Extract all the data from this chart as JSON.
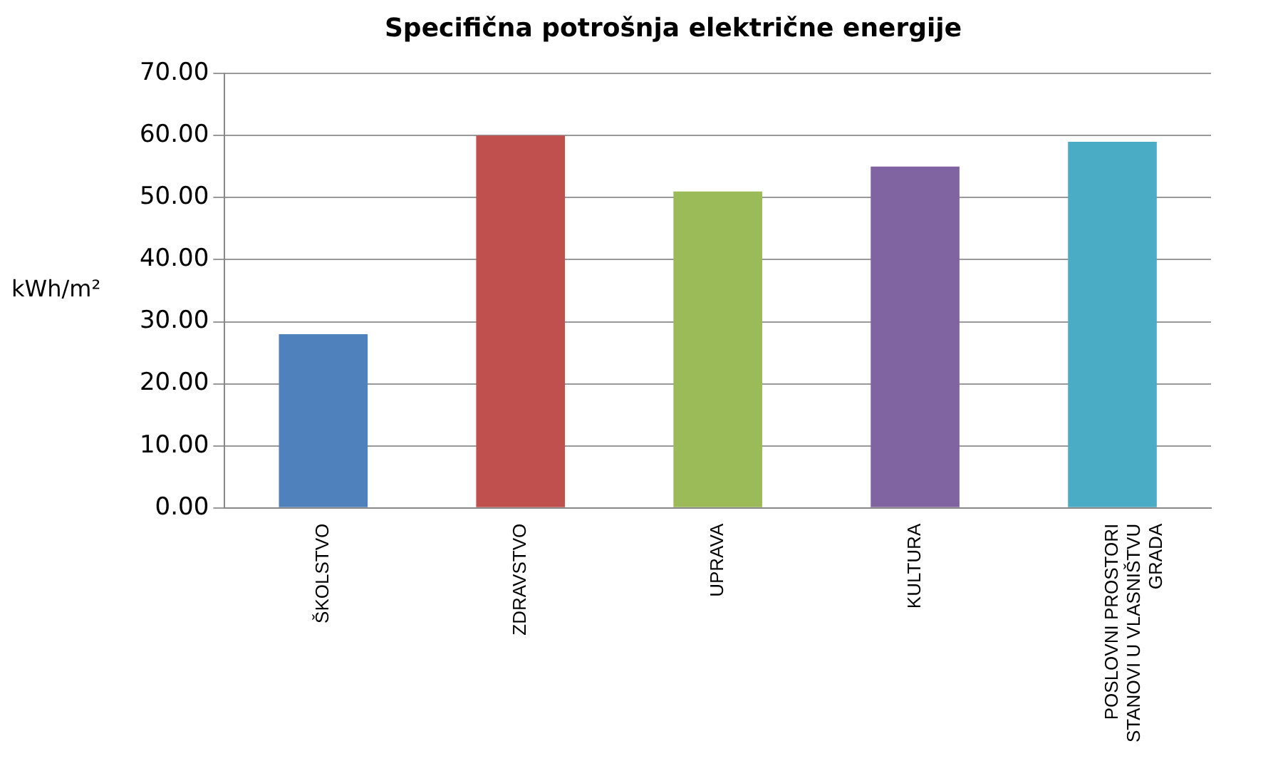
{
  "chart_data": {
    "type": "bar",
    "title": "Specifična potrošnja električne energije",
    "ylabel": "kWh/m²",
    "categories": [
      "ŠKOLSTVO",
      "ZDRAVSTVO",
      "UPRAVA",
      "KULTURA",
      "POSLOVNI PROSTORI STANOVI U VLASNIŠTVU GRADA"
    ],
    "values": [
      28,
      60,
      51,
      55,
      59
    ],
    "colors": [
      "#4f81bd",
      "#c0504d",
      "#9bbb59",
      "#8064a2",
      "#4bacc6"
    ],
    "ylim": [
      0,
      70
    ],
    "yticks": [
      {
        "value": 0,
        "label": "0.00"
      },
      {
        "value": 10,
        "label": "10.00"
      },
      {
        "value": 20,
        "label": "20.00"
      },
      {
        "value": 30,
        "label": "30.00"
      },
      {
        "value": 40,
        "label": "40.00"
      },
      {
        "value": 50,
        "label": "50.00"
      },
      {
        "value": 60,
        "label": "60.00"
      },
      {
        "value": 70,
        "label": "70.00"
      }
    ],
    "grid": "y",
    "legend": false
  }
}
